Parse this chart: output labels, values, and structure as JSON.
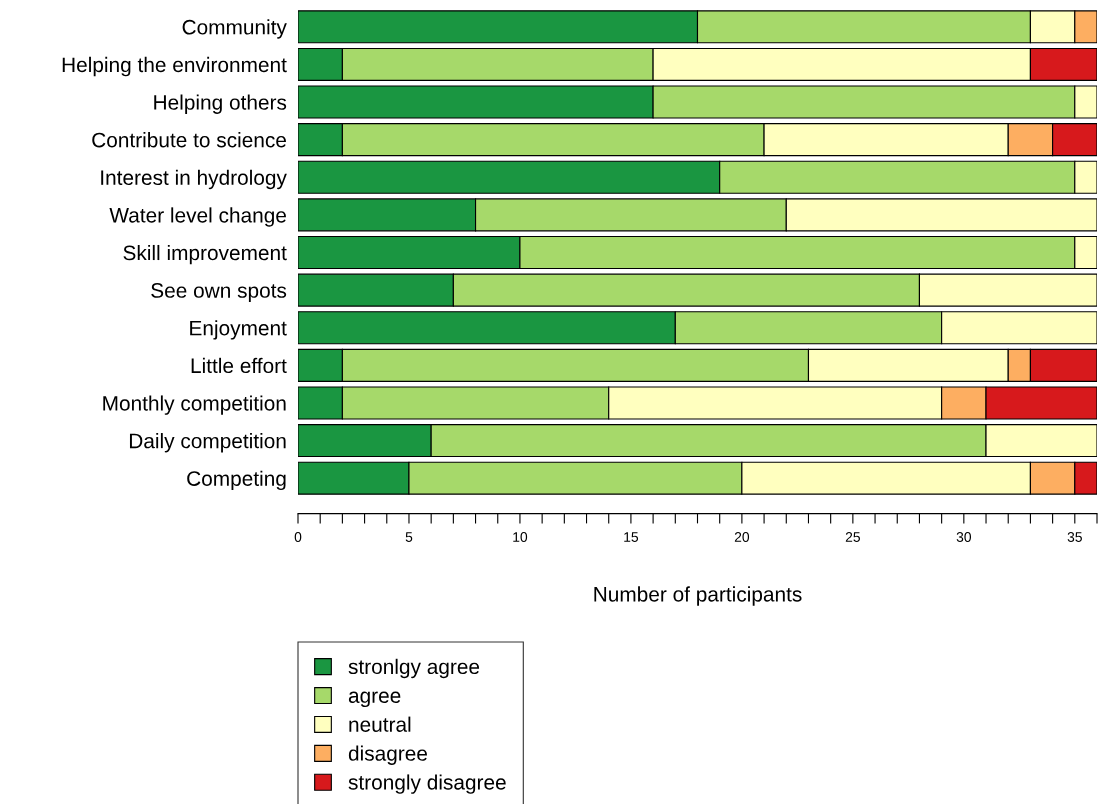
{
  "chart_data": {
    "type": "bar",
    "orientation": "horizontal",
    "stacked": true,
    "xlabel": "Number of participants",
    "categories": [
      "Community",
      "Helping the environment",
      "Helping others",
      "Contribute to science",
      "Interest in hydrology",
      "Water level change",
      "Skill improvement",
      "See own spots",
      "Enjoyment",
      "Little effort",
      "Monthly competition",
      "Daily competition",
      "Competing"
    ],
    "series": [
      {
        "name": "stronlgy agree",
        "color": "#1a9641",
        "values": [
          18,
          2,
          16,
          2,
          19,
          8,
          10,
          7,
          17,
          2,
          2,
          6,
          5
        ]
      },
      {
        "name": "agree",
        "color": "#a6d96a",
        "values": [
          15,
          14,
          19,
          19,
          16,
          14,
          25,
          21,
          12,
          21,
          12,
          25,
          15
        ]
      },
      {
        "name": "neutral",
        "color": "#ffffbf",
        "values": [
          2,
          17,
          1,
          11,
          1,
          14,
          1,
          8,
          7,
          9,
          15,
          5,
          13
        ]
      },
      {
        "name": "disagree",
        "color": "#fdae61",
        "values": [
          1,
          0,
          0,
          2,
          0,
          0,
          0,
          0,
          0,
          1,
          2,
          0,
          2
        ]
      },
      {
        "name": "strongly disagree",
        "color": "#d7191c",
        "values": [
          0,
          3,
          0,
          2,
          0,
          0,
          0,
          0,
          0,
          3,
          5,
          0,
          1
        ]
      }
    ],
    "xlim": [
      0,
      36
    ],
    "xticks": [
      0,
      {
        "value": 1,
        "label": null
      },
      {
        "value": 2,
        "label": null
      },
      {
        "value": 3,
        "label": null
      },
      {
        "value": 4,
        "label": null
      },
      5,
      {
        "value": 6,
        "label": null
      },
      {
        "value": 7,
        "label": null
      },
      {
        "value": 8,
        "label": null
      },
      {
        "value": 9,
        "label": null
      },
      10,
      {
        "value": 11,
        "label": null
      },
      {
        "value": 12,
        "label": null
      },
      {
        "value": 13,
        "label": null
      },
      {
        "value": 14,
        "label": null
      },
      15,
      {
        "value": 16,
        "label": null
      },
      {
        "value": 17,
        "label": null
      },
      {
        "value": 18,
        "label": null
      },
      {
        "value": 19,
        "label": null
      },
      20,
      {
        "value": 21,
        "label": null
      },
      {
        "value": 22,
        "label": null
      },
      {
        "value": 23,
        "label": null
      },
      {
        "value": 24,
        "label": null
      },
      25,
      {
        "value": 26,
        "label": null
      },
      {
        "value": 27,
        "label": null
      },
      {
        "value": 28,
        "label": null
      },
      {
        "value": 29,
        "label": null
      },
      30,
      {
        "value": 31,
        "label": null
      },
      {
        "value": 32,
        "label": null
      },
      {
        "value": 33,
        "label": null
      },
      {
        "value": 34,
        "label": null
      },
      35,
      {
        "value": 36,
        "label": null
      }
    ],
    "grid": false,
    "legend": "bottom"
  }
}
